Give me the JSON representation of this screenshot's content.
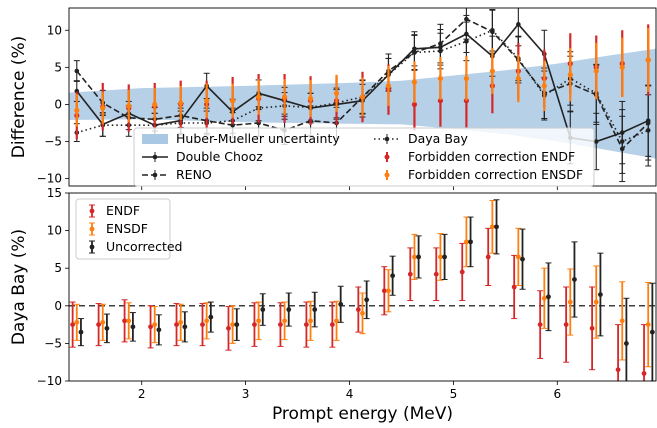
{
  "chart_data": [
    {
      "type": "line",
      "ylabel": "Difference (%)",
      "xlim": [
        1.3,
        6.95
      ],
      "ylim": [
        -11,
        13
      ],
      "yticks": [
        "10",
        "5",
        "0",
        "−5",
        "−10"
      ],
      "ytick_values": [
        10,
        5,
        0,
        -5,
        -10
      ],
      "x": [
        1.375,
        1.625,
        1.875,
        2.125,
        2.375,
        2.625,
        2.875,
        3.125,
        3.375,
        3.625,
        3.875,
        4.125,
        4.375,
        4.625,
        4.875,
        5.125,
        5.375,
        5.625,
        5.875,
        6.125,
        6.375,
        6.625,
        6.875
      ],
      "band": {
        "name": "Huber-Mueller uncertainty",
        "color": "#a9c8e4",
        "x": [
          1.3,
          2.0,
          3.0,
          4.0,
          4.5,
          5.0,
          5.5,
          6.0,
          6.5,
          6.95
        ],
        "upper": [
          1.6,
          2.2,
          2.5,
          2.9,
          3.2,
          3.9,
          4.6,
          5.5,
          6.6,
          7.5
        ],
        "lower": [
          -2.1,
          -2.0,
          -2.4,
          -2.6,
          -2.7,
          -3.3,
          -4.0,
          -5.0,
          -6.2,
          -7.3
        ]
      },
      "series": [
        {
          "name": "Double Chooz",
          "style": "solid",
          "color": "#222222",
          "values": [
            1.8,
            -2.7,
            -1.2,
            -2.8,
            -2.2,
            2.5,
            -1.0,
            1.5,
            0.5,
            -0.5,
            0.0,
            0.5,
            4.0,
            7.5,
            7.7,
            9.5,
            6.5,
            10.8,
            6.8,
            -4.5,
            -5.0,
            -3.8,
            -2.2
          ],
          "err": [
            1.4,
            1.6,
            1.6,
            1.6,
            1.7,
            1.7,
            1.7,
            1.8,
            1.8,
            2.0,
            2.0,
            2.2,
            2.2,
            2.3,
            2.4,
            2.5,
            2.7,
            2.9,
            3.2,
            3.5,
            3.8,
            4.2,
            4.8
          ]
        },
        {
          "name": "RENO",
          "style": "dashed",
          "color": "#222222",
          "values": [
            4.5,
            0.2,
            -1.8,
            -2.0,
            -1.5,
            -2.2,
            -2.8,
            -2.5,
            -3.5,
            -2.2,
            -2.5,
            1.0,
            4.5,
            7.0,
            8.2,
            11.5,
            9.8,
            6.0,
            1.5,
            2.8,
            1.3,
            -6.0,
            -2.5
          ],
          "err": [
            1.4,
            1.7,
            1.6,
            1.6,
            1.6,
            1.7,
            1.7,
            1.8,
            1.9,
            2.0,
            2.1,
            2.3,
            2.3,
            2.4,
            2.6,
            2.7,
            2.9,
            3.1,
            3.4,
            3.7,
            4.0,
            4.4,
            5.0
          ]
        },
        {
          "name": "Daya Bay",
          "style": "dotted",
          "color": "#222222",
          "values": [
            -3.8,
            -2.8,
            -2.8,
            -2.8,
            -2.5,
            -2.5,
            -2.2,
            -0.5,
            -0.2,
            -0.4,
            0.2,
            1.0,
            4.0,
            7.0,
            7.2,
            8.5,
            10.0,
            6.2,
            1.2,
            3.5,
            1.5,
            -5.0,
            -3.5
          ],
          "err": [
            1.2,
            1.5,
            1.5,
            1.6,
            1.6,
            1.6,
            1.7,
            1.7,
            1.8,
            1.9,
            2.0,
            2.2,
            2.2,
            2.3,
            2.4,
            2.6,
            2.8,
            3.0,
            3.3,
            3.6,
            3.9,
            4.3,
            4.8
          ]
        },
        {
          "name": "Forbidden correction ENDF",
          "marker": "dot",
          "color": "#d62728",
          "values": [
            -1.5,
            -0.3,
            -0.5,
            -0.3,
            0.0,
            0.0,
            0.5,
            0.8,
            0.8,
            0.5,
            0.5,
            1.0,
            2.0,
            0.0,
            0.5,
            0.5,
            2.5,
            4.5,
            3.5,
            5.5,
            5.0,
            5.5,
            6.0
          ],
          "err": [
            3.2,
            3.2,
            3.2,
            3.2,
            3.2,
            3.2,
            3.2,
            3.3,
            3.3,
            3.3,
            3.3,
            3.4,
            3.4,
            3.5,
            3.5,
            3.6,
            3.7,
            3.8,
            3.9,
            4.1,
            4.3,
            4.5,
            4.8
          ]
        },
        {
          "name": "Forbidden correction ENSDF",
          "marker": "dot",
          "color": "#ff7f0e",
          "values": [
            -0.8,
            -0.5,
            -0.2,
            0.0,
            0.2,
            0.5,
            0.5,
            1.0,
            1.0,
            0.8,
            1.5,
            1.0,
            2.5,
            3.0,
            3.5,
            3.5,
            4.5,
            3.5,
            2.5,
            4.0,
            4.5,
            5.0,
            6.0
          ],
          "err": [
            2.2,
            2.2,
            2.2,
            2.2,
            2.3,
            2.3,
            2.3,
            2.4,
            2.4,
            2.5,
            2.5,
            2.6,
            2.7,
            2.8,
            2.9,
            3.0,
            3.1,
            3.2,
            3.4,
            3.6,
            3.8,
            4.0,
            4.3
          ]
        }
      ]
    },
    {
      "type": "scatter",
      "ylabel": "Daya Bay (%)",
      "xlabel": "Prompt energy (MeV)",
      "xlim": [
        1.3,
        6.95
      ],
      "ylim": [
        -10,
        15
      ],
      "xticks": [
        "2",
        "3",
        "4",
        "5",
        "6"
      ],
      "xtick_values": [
        2,
        3,
        4,
        5,
        6
      ],
      "yticks": [
        "15",
        "10",
        "5",
        "0",
        "−5",
        "−10"
      ],
      "ytick_values": [
        15,
        10,
        5,
        0,
        -5,
        -10
      ],
      "reference_line": 0,
      "x": [
        1.375,
        1.625,
        1.875,
        2.125,
        2.375,
        2.625,
        2.875,
        3.125,
        3.375,
        3.625,
        3.875,
        4.125,
        4.375,
        4.625,
        4.875,
        5.125,
        5.375,
        5.625,
        5.875,
        6.125,
        6.375,
        6.625,
        6.875
      ],
      "series": [
        {
          "name": "ENDF",
          "color": "#d62728",
          "offset": -0.04,
          "values": [
            -2.5,
            -2.5,
            -2.0,
            -2.8,
            -2.5,
            -2.5,
            -3.0,
            -2.5,
            -2.5,
            -2.5,
            -2.5,
            -0.5,
            2.0,
            4.2,
            4.2,
            4.5,
            6.5,
            2.5,
            -2.5,
            -2.5,
            -3.0,
            -8.5,
            -9.0
          ],
          "err": [
            3.0,
            2.8,
            2.8,
            2.8,
            2.8,
            2.8,
            2.9,
            2.9,
            2.9,
            3.0,
            3.0,
            3.0,
            3.2,
            3.5,
            3.5,
            3.8,
            3.8,
            4.2,
            4.5,
            5.0,
            5.5,
            6.0,
            6.5
          ]
        },
        {
          "name": "ENSDF",
          "color": "#ff7f0e",
          "offset": 0.0,
          "values": [
            -2.2,
            -2.2,
            -2.0,
            -2.5,
            -2.2,
            -2.0,
            -2.5,
            -2.0,
            -2.0,
            -2.0,
            -2.0,
            -1.0,
            2.0,
            6.5,
            6.5,
            8.5,
            10.5,
            6.5,
            1.0,
            0.5,
            0.5,
            -2.0,
            -2.5
          ],
          "err": [
            2.4,
            2.4,
            2.4,
            2.4,
            2.4,
            2.4,
            2.5,
            2.5,
            2.5,
            2.6,
            2.6,
            2.7,
            2.8,
            3.0,
            3.1,
            3.3,
            3.5,
            3.8,
            4.0,
            4.4,
            4.8,
            5.2,
            5.6
          ]
        },
        {
          "name": "Uncorrected",
          "color": "#222222",
          "offset": 0.04,
          "values": [
            -3.5,
            -3.0,
            -2.8,
            -3.2,
            -2.8,
            -1.5,
            -2.5,
            -0.5,
            -0.5,
            -0.5,
            0.2,
            0.8,
            4.0,
            6.5,
            6.5,
            8.5,
            10.5,
            6.2,
            1.2,
            3.5,
            1.5,
            -5.0,
            -3.5
          ],
          "err": [
            1.8,
            1.9,
            1.9,
            2.0,
            2.0,
            2.0,
            2.1,
            2.1,
            2.2,
            2.3,
            2.4,
            2.5,
            2.6,
            2.8,
            3.0,
            3.3,
            3.6,
            4.0,
            4.5,
            5.0,
            5.5,
            6.0,
            6.5
          ]
        }
      ]
    }
  ]
}
